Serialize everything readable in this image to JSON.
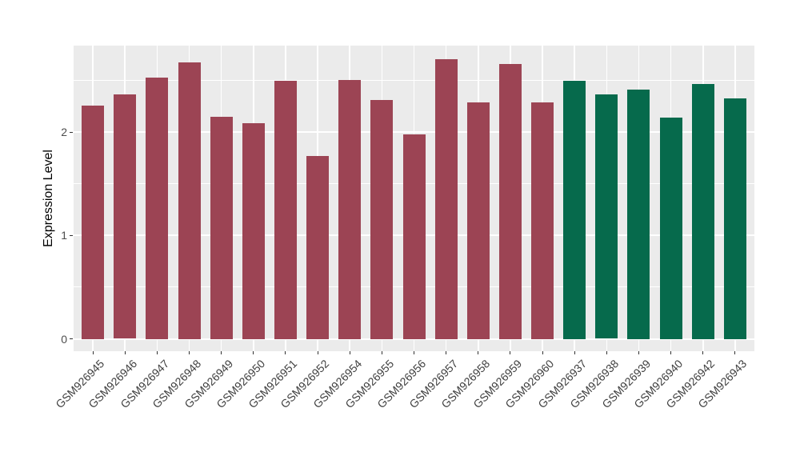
{
  "figure": {
    "background": "#FFFFFF",
    "panel_background": "#EBEBEB",
    "gridline_color": "#FFFFFF",
    "tick_mark_color": "#333333",
    "axis_text_color": "#4D4D4D",
    "axis_title_color": "#000000"
  },
  "chart_data": {
    "type": "bar",
    "title": "",
    "xlabel": "",
    "ylabel": "Expression Level",
    "ylim": [
      -0.12,
      2.84
    ],
    "yticks": [
      0,
      1,
      2
    ],
    "y_minor_gridlines": [
      0.5,
      1.5,
      2.5
    ],
    "grid": "on",
    "legend": "none",
    "x_tick_rotation_deg": 45,
    "categories": [
      "GSM926945",
      "GSM926946",
      "GSM926947",
      "GSM926948",
      "GSM926949",
      "GSM926950",
      "GSM926951",
      "GSM926952",
      "GSM926954",
      "GSM926955",
      "GSM926956",
      "GSM926957",
      "GSM926958",
      "GSM926959",
      "GSM926960",
      "GSM926937",
      "GSM926938",
      "GSM926939",
      "GSM926940",
      "GSM926942",
      "GSM926943"
    ],
    "values": [
      2.26,
      2.37,
      2.53,
      2.68,
      2.15,
      2.09,
      2.5,
      1.77,
      2.51,
      2.31,
      1.98,
      2.71,
      2.29,
      2.66,
      2.29,
      2.5,
      2.37,
      2.41,
      2.14,
      2.47,
      2.33
    ],
    "bar_groups": [
      "maroon",
      "maroon",
      "maroon",
      "maroon",
      "maroon",
      "maroon",
      "maroon",
      "maroon",
      "maroon",
      "maroon",
      "maroon",
      "maroon",
      "maroon",
      "maroon",
      "maroon",
      "green",
      "green",
      "green",
      "green",
      "green",
      "green"
    ],
    "group_colors": {
      "maroon": "#9C4454",
      "green": "#066A4C"
    }
  }
}
